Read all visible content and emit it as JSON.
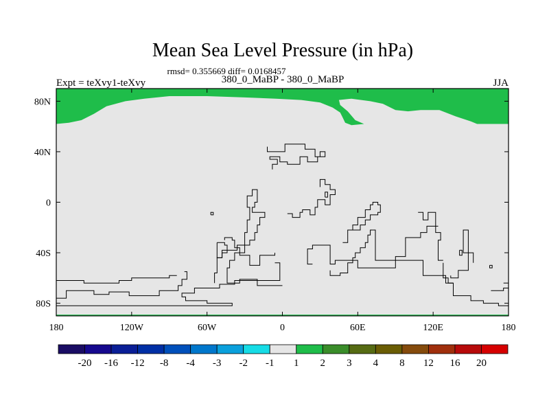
{
  "chart_data": {
    "type": "heatmap",
    "title": "Mean Sea Level Pressure (in hPa)",
    "stats": "rmsd= 0.355669 diff= 0.0168457",
    "left_label": "Expt = teXvy1-teXvy",
    "center_label": "380_0_MaBP - 380_0_MaBP",
    "right_label": "JJA",
    "x_range": [
      -180,
      180
    ],
    "y_range": [
      -90,
      90
    ],
    "x_ticks": [
      {
        "value": -180,
        "label": "180"
      },
      {
        "value": -120,
        "label": "120W"
      },
      {
        "value": -60,
        "label": "60W"
      },
      {
        "value": 0,
        "label": "0"
      },
      {
        "value": 60,
        "label": "60E"
      },
      {
        "value": 120,
        "label": "120E"
      },
      {
        "value": 180,
        "label": "180"
      }
    ],
    "y_ticks": [
      {
        "value": 80,
        "label": "80N"
      },
      {
        "value": 40,
        "label": "40N"
      },
      {
        "value": 0,
        "label": "0"
      },
      {
        "value": -40,
        "label": "40S"
      },
      {
        "value": -80,
        "label": "80S"
      }
    ],
    "field_background_color": "#e6e6e6",
    "regions": [
      {
        "name": "north-polar-positive-band",
        "level": "1 to 2",
        "color": "#1fbd4a",
        "lon_lat": [
          [
            -180,
            90
          ],
          [
            180,
            90
          ],
          [
            180,
            62
          ],
          [
            155,
            62
          ],
          [
            150,
            64
          ],
          [
            138,
            68
          ],
          [
            125,
            73
          ],
          [
            110,
            73
          ],
          [
            100,
            72
          ],
          [
            90,
            73
          ],
          [
            80,
            78
          ],
          [
            70,
            80
          ],
          [
            55,
            82
          ],
          [
            45,
            81
          ],
          [
            46,
            77
          ],
          [
            52,
            72
          ],
          [
            58,
            65
          ],
          [
            65,
            62
          ],
          [
            55,
            61
          ],
          [
            50,
            63
          ],
          [
            48,
            67
          ],
          [
            46,
            71
          ],
          [
            40,
            75
          ],
          [
            30,
            79
          ],
          [
            15,
            81
          ],
          [
            -5,
            82
          ],
          [
            -30,
            83
          ],
          [
            -60,
            84
          ],
          [
            -90,
            84
          ],
          [
            -110,
            82
          ],
          [
            -125,
            80
          ],
          [
            -140,
            76
          ],
          [
            -150,
            70
          ],
          [
            -160,
            65
          ],
          [
            -170,
            63
          ],
          [
            -180,
            62
          ]
        ]
      },
      {
        "name": "south-polar-positive-strip",
        "level": "1 to 2",
        "color": "#1fbd4a",
        "lon_lat": [
          [
            -180,
            -90
          ],
          [
            180,
            -90
          ],
          [
            180,
            -89
          ],
          [
            -180,
            -89
          ]
        ]
      }
    ],
    "contours": [
      [
        [
          24,
          -49
        ],
        [
          20,
          -49
        ],
        [
          20,
          -37
        ],
        [
          24,
          -37
        ],
        [
          24,
          -34
        ],
        [
          38,
          -34
        ],
        [
          38,
          -49
        ],
        [
          42,
          -49
        ],
        [
          42,
          -46
        ],
        [
          60,
          -46
        ],
        [
          60,
          -52
        ],
        [
          90,
          -52
        ],
        [
          90,
          -43
        ],
        [
          98,
          -43
        ],
        [
          98,
          -28
        ],
        [
          110,
          -28
        ],
        [
          110,
          -24
        ],
        [
          115,
          -24
        ],
        [
          115,
          -19
        ],
        [
          124,
          -19
        ]
      ],
      [
        [
          -6,
          -48
        ],
        [
          -2,
          -48
        ],
        [
          -2,
          -62
        ],
        [
          -38,
          -62
        ],
        [
          -38,
          -65
        ],
        [
          -50,
          -65
        ],
        [
          -50,
          -68
        ],
        [
          -70,
          -68
        ],
        [
          -70,
          -72
        ],
        [
          -80,
          -72
        ],
        [
          -80,
          -75
        ],
        [
          -77,
          -75
        ],
        [
          -77,
          -78
        ],
        [
          -60,
          -78
        ],
        [
          -60,
          -80
        ],
        [
          -40,
          -80
        ],
        [
          -40,
          -82
        ],
        [
          -180,
          -82
        ]
      ],
      [
        [
          -180,
          -76
        ],
        [
          -172,
          -76
        ],
        [
          -172,
          -70
        ],
        [
          -150,
          -70
        ],
        [
          -150,
          -73
        ],
        [
          -138,
          -73
        ],
        [
          -138,
          -71
        ],
        [
          -122,
          -71
        ],
        [
          -122,
          -74
        ],
        [
          -98,
          -74
        ],
        [
          -98,
          -70
        ],
        [
          -83,
          -70
        ],
        [
          -83,
          -66
        ],
        [
          -80,
          -66
        ],
        [
          -80,
          -61
        ],
        [
          -76,
          -61
        ],
        [
          -76,
          -55
        ],
        [
          -78,
          -55
        ]
      ],
      [
        [
          -180,
          -62
        ],
        [
          -158,
          -62
        ],
        [
          -158,
          -64
        ],
        [
          -130,
          -64
        ],
        [
          -130,
          -62
        ],
        [
          -120,
          -62
        ],
        [
          -120,
          -60
        ],
        [
          -90,
          -60
        ],
        [
          -90,
          -58
        ],
        [
          -84,
          -58
        ]
      ],
      [
        [
          0,
          -66
        ],
        [
          -20,
          -66
        ],
        [
          -20,
          -61
        ],
        [
          -34,
          -61
        ],
        [
          -34,
          -64
        ],
        [
          -44,
          -64
        ],
        [
          -44,
          -52
        ],
        [
          -42,
          -52
        ],
        [
          -42,
          -46
        ],
        [
          -38,
          -46
        ],
        [
          -38,
          -40
        ],
        [
          -30,
          -40
        ],
        [
          -30,
          -34
        ],
        [
          -26,
          -34
        ],
        [
          -26,
          -30
        ],
        [
          -22,
          -30
        ],
        [
          -22,
          -24
        ],
        [
          -20,
          -24
        ],
        [
          -20,
          -18
        ],
        [
          -18,
          -18
        ],
        [
          -18,
          -12
        ],
        [
          -14,
          -12
        ],
        [
          -14,
          -8
        ],
        [
          -24,
          -8
        ],
        [
          -24,
          -4
        ],
        [
          -22,
          -4
        ],
        [
          -22,
          0
        ],
        [
          -20,
          0
        ],
        [
          -20,
          10
        ],
        [
          -24,
          10
        ],
        [
          -24,
          5
        ],
        [
          -28,
          5
        ],
        [
          -28,
          -4
        ],
        [
          -26,
          -4
        ],
        [
          -26,
          -14
        ],
        [
          -28,
          -14
        ],
        [
          -28,
          -24
        ],
        [
          -30,
          -24
        ],
        [
          -30,
          -34
        ],
        [
          -36,
          -34
        ],
        [
          -36,
          -38
        ],
        [
          -48,
          -38
        ],
        [
          -48,
          -44
        ],
        [
          -52,
          -44
        ],
        [
          -52,
          -56
        ],
        [
          -54,
          -56
        ],
        [
          -54,
          -64
        ]
      ],
      [
        [
          -6,
          -40
        ],
        [
          -6,
          -42
        ],
        [
          -18,
          -42
        ],
        [
          -18,
          -50
        ],
        [
          -26,
          -50
        ],
        [
          -26,
          -42
        ],
        [
          -34,
          -42
        ],
        [
          -34,
          -36
        ],
        [
          -38,
          -36
        ],
        [
          -38,
          -30
        ],
        [
          -40,
          -30
        ],
        [
          -40,
          -28
        ],
        [
          -46,
          -28
        ],
        [
          -46,
          -30
        ]
      ],
      [
        [
          -52,
          -32
        ],
        [
          -52,
          -44
        ],
        [
          -48,
          -44
        ],
        [
          -48,
          -40
        ],
        [
          -44,
          -40
        ],
        [
          -44,
          -34
        ],
        [
          -46,
          -34
        ],
        [
          -46,
          -32
        ],
        [
          -52,
          -32
        ]
      ],
      [
        [
          -57,
          -10
        ],
        [
          -55,
          -10
        ],
        [
          -55,
          -8
        ],
        [
          -57,
          -8
        ],
        [
          -57,
          -10
        ]
      ],
      [
        [
          4,
          -9
        ],
        [
          8,
          -9
        ],
        [
          8,
          -12
        ],
        [
          14,
          -12
        ],
        [
          14,
          -8
        ],
        [
          16,
          -8
        ],
        [
          16,
          -6
        ],
        [
          22,
          -6
        ],
        [
          22,
          -10
        ],
        [
          26,
          -10
        ],
        [
          26,
          -4
        ],
        [
          28,
          -4
        ],
        [
          28,
          2
        ],
        [
          34,
          2
        ],
        [
          34,
          -2
        ],
        [
          38,
          -2
        ],
        [
          38,
          6
        ],
        [
          42,
          6
        ],
        [
          42,
          10
        ],
        [
          38,
          10
        ],
        [
          38,
          14
        ],
        [
          34,
          14
        ],
        [
          34,
          18
        ],
        [
          30,
          18
        ],
        [
          30,
          12
        ]
      ],
      [
        [
          34,
          4
        ],
        [
          36,
          4
        ],
        [
          36,
          8
        ],
        [
          34,
          8
        ],
        [
          34,
          4
        ]
      ],
      [
        [
          -12,
          44
        ],
        [
          -12,
          40
        ],
        [
          2,
          40
        ],
        [
          2,
          46
        ],
        [
          18,
          46
        ],
        [
          18,
          42
        ],
        [
          26,
          42
        ],
        [
          26,
          36
        ],
        [
          30,
          36
        ],
        [
          30,
          40
        ],
        [
          34,
          40
        ],
        [
          34,
          36
        ],
        [
          28,
          36
        ],
        [
          28,
          32
        ],
        [
          20,
          32
        ],
        [
          20,
          36
        ],
        [
          14,
          36
        ],
        [
          14,
          30
        ],
        [
          4,
          30
        ],
        [
          4,
          32
        ],
        [
          -2,
          32
        ],
        [
          -2,
          36
        ],
        [
          -10,
          36
        ],
        [
          -10,
          34
        ],
        [
          -4,
          34
        ],
        [
          -4,
          30
        ],
        [
          -8,
          30
        ],
        [
          -8,
          26
        ]
      ],
      [
        [
          72,
          -22
        ],
        [
          74,
          -22
        ],
        [
          74,
          -46
        ],
        [
          112,
          -46
        ],
        [
          112,
          -58
        ],
        [
          130,
          -58
        ],
        [
          130,
          -64
        ],
        [
          136,
          -64
        ],
        [
          136,
          -74
        ],
        [
          150,
          -74
        ],
        [
          150,
          -78
        ],
        [
          160,
          -78
        ],
        [
          160,
          -80
        ],
        [
          172,
          -80
        ],
        [
          172,
          -82
        ],
        [
          180,
          -82
        ]
      ],
      [
        [
          72,
          -22
        ],
        [
          70,
          -22
        ],
        [
          70,
          -26
        ],
        [
          68,
          -26
        ],
        [
          68,
          -32
        ],
        [
          66,
          -32
        ],
        [
          66,
          -36
        ],
        [
          62,
          -36
        ],
        [
          62,
          -40
        ],
        [
          58,
          -40
        ],
        [
          58,
          -44
        ],
        [
          56,
          -44
        ],
        [
          56,
          -48
        ],
        [
          52,
          -48
        ],
        [
          52,
          -56
        ],
        [
          46,
          -56
        ],
        [
          46,
          -58
        ],
        [
          38,
          -58
        ],
        [
          38,
          -54
        ]
      ],
      [
        [
          48,
          -32
        ],
        [
          52,
          -32
        ],
        [
          52,
          -22
        ],
        [
          56,
          -22
        ],
        [
          56,
          -18
        ],
        [
          60,
          -18
        ],
        [
          60,
          -12
        ],
        [
          66,
          -12
        ],
        [
          66,
          -6
        ],
        [
          70,
          -6
        ],
        [
          70,
          -2
        ],
        [
          72,
          -2
        ],
        [
          72,
          0
        ],
        [
          76,
          0
        ],
        [
          76,
          -2
        ],
        [
          78,
          -2
        ],
        [
          78,
          -8
        ],
        [
          76,
          -8
        ],
        [
          76,
          -10
        ],
        [
          70,
          -10
        ],
        [
          70,
          -14
        ],
        [
          66,
          -14
        ],
        [
          66,
          -18
        ],
        [
          62,
          -18
        ],
        [
          62,
          -22
        ],
        [
          56,
          -22
        ]
      ],
      [
        [
          128,
          -48
        ],
        [
          128,
          -54
        ],
        [
          128,
          -60
        ],
        [
          132,
          -60
        ],
        [
          132,
          -64
        ],
        [
          136,
          -64
        ]
      ],
      [
        [
          108,
          -8
        ],
        [
          112,
          -8
        ],
        [
          112,
          -14
        ],
        [
          116,
          -14
        ],
        [
          116,
          -8
        ],
        [
          122,
          -8
        ],
        [
          122,
          -24
        ],
        [
          126,
          -24
        ],
        [
          126,
          -30
        ],
        [
          124,
          -30
        ],
        [
          124,
          -46
        ],
        [
          128,
          -46
        ]
      ],
      [
        [
          134,
          -58
        ],
        [
          134,
          -60
        ],
        [
          140,
          -60
        ],
        [
          140,
          -54
        ],
        [
          148,
          -54
        ],
        [
          148,
          -40
        ],
        [
          144,
          -40
        ],
        [
          144,
          -22
        ],
        [
          148,
          -22
        ],
        [
          148,
          -40
        ],
        [
          152,
          -40
        ],
        [
          152,
          -48
        ]
      ],
      [
        [
          141,
          -38
        ],
        [
          143,
          -38
        ],
        [
          143,
          -42
        ],
        [
          141,
          -42
        ],
        [
          141,
          -38
        ]
      ],
      [
        [
          165,
          -50
        ],
        [
          167,
          -50
        ],
        [
          167,
          -52
        ],
        [
          165,
          -52
        ],
        [
          165,
          -50
        ]
      ],
      [
        [
          176,
          -64
        ],
        [
          180,
          -64
        ]
      ],
      [
        [
          166,
          -70
        ],
        [
          176,
          -70
        ],
        [
          176,
          -68
        ],
        [
          180,
          -68
        ]
      ]
    ],
    "colorbar": {
      "labels": [
        "-20",
        "-16",
        "-12",
        "-8",
        "-4",
        "-3",
        "-2",
        "-1",
        "1",
        "2",
        "3",
        "4",
        "8",
        "12",
        "16",
        "20"
      ],
      "colors": [
        "#1a0c64",
        "#16098e",
        "#0a1e96",
        "#002fa5",
        "#0050bb",
        "#0077cc",
        "#0aa0dc",
        "#16dce6",
        "#e6e6e6",
        "#1fbd4a",
        "#3a8d2a",
        "#566b13",
        "#6a5d04",
        "#854b0c",
        "#a02f0c",
        "#b70a0a",
        "#d60000"
      ]
    }
  }
}
